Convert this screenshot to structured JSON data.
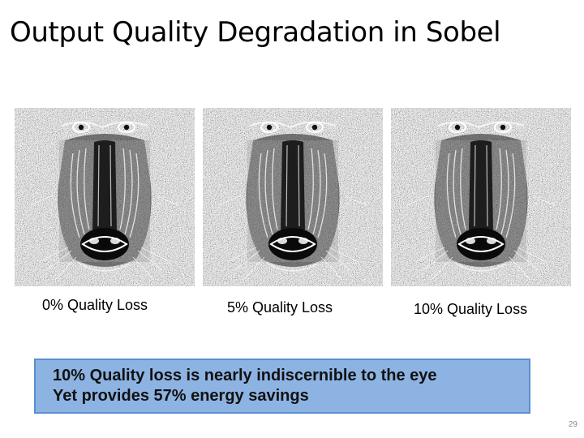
{
  "slide": {
    "title": "Output Quality Degradation in Sobel",
    "images": [
      {
        "caption": "0% Quality Loss",
        "icon": "baboon-sobel-edge-image",
        "quality_loss_percent": 0
      },
      {
        "caption": "5% Quality Loss",
        "icon": "baboon-sobel-edge-image",
        "quality_loss_percent": 5
      },
      {
        "caption": "10% Quality Loss",
        "icon": "baboon-sobel-edge-image",
        "quality_loss_percent": 10
      }
    ],
    "callout": {
      "line1": "10% Quality loss is nearly indiscernible to the eye",
      "line2": "Yet provides 57% energy savings",
      "background_color": "#8db3e2",
      "border_color": "#5b8fd1"
    },
    "page_number": "29"
  }
}
